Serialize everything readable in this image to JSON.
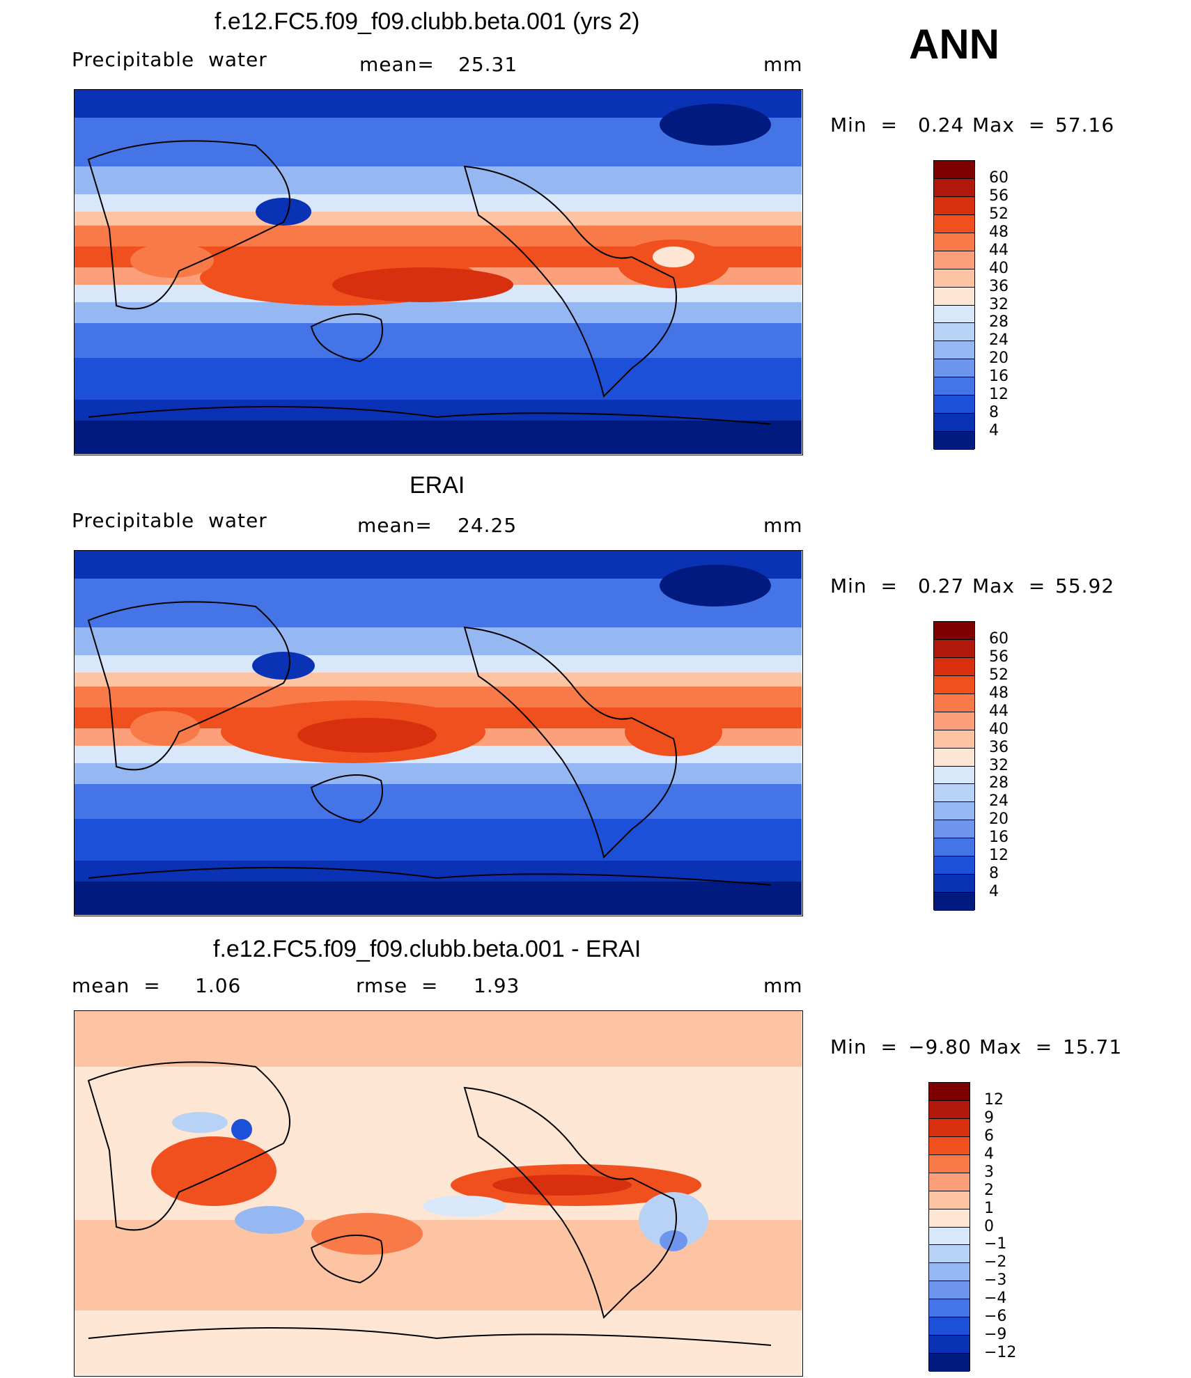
{
  "season": "ANN",
  "panels": [
    {
      "title": "f.e12.FC5.f09_f09.clubb.beta.001 (yrs 2)",
      "left_label": "Precipitable  water",
      "stat_label": "mean=",
      "stat_value": "25.31",
      "units": "mm",
      "min_label": "Min  =",
      "min_value": "0.24",
      "max_label": "Max  =",
      "max_value": "57.16",
      "colorbar": {
        "labels": [
          "60",
          "56",
          "52",
          "48",
          "44",
          "40",
          "36",
          "32",
          "28",
          "24",
          "20",
          "16",
          "12",
          "8",
          "4"
        ],
        "colors": [
          "#7f0000",
          "#b0180b",
          "#d8300f",
          "#f0501e",
          "#f87a48",
          "#fba07a",
          "#fdc4a4",
          "#fde6d4",
          "#d8e8fa",
          "#b8d2f6",
          "#96b8f2",
          "#6e96ec",
          "#4474e6",
          "#1c50d8",
          "#0a32b4",
          "#001a80"
        ]
      }
    },
    {
      "title": "ERAI",
      "left_label": "Precipitable  water",
      "stat_label": "mean=",
      "stat_value": "24.25",
      "units": "mm",
      "min_label": "Min  =",
      "min_value": "0.27",
      "max_label": "Max  =",
      "max_value": "55.92",
      "colorbar": {
        "labels": [
          "60",
          "56",
          "52",
          "48",
          "44",
          "40",
          "36",
          "32",
          "28",
          "24",
          "20",
          "16",
          "12",
          "8",
          "4"
        ],
        "colors": [
          "#7f0000",
          "#b0180b",
          "#d8300f",
          "#f0501e",
          "#f87a48",
          "#fba07a",
          "#fdc4a4",
          "#fde6d4",
          "#d8e8fa",
          "#b8d2f6",
          "#96b8f2",
          "#6e96ec",
          "#4474e6",
          "#1c50d8",
          "#0a32b4",
          "#001a80"
        ]
      }
    },
    {
      "title": "f.e12.FC5.f09_f09.clubb.beta.001 - ERAI",
      "left_label": "mean  =",
      "left_value": "1.06",
      "stat_label": "rmse  =",
      "stat_value": "1.93",
      "units": "mm",
      "min_label": "Min  =",
      "min_value": "−9.80",
      "max_label": "Max  =",
      "max_value": "15.71",
      "colorbar": {
        "labels": [
          "12",
          "9",
          "6",
          "4",
          "3",
          "2",
          "1",
          "0",
          "−1",
          "−2",
          "−3",
          "−4",
          "−6",
          "−9",
          "−12"
        ],
        "colors": [
          "#7f0000",
          "#b0180b",
          "#d8300f",
          "#f0501e",
          "#f87a48",
          "#fba07a",
          "#fdc4a4",
          "#fde6d4",
          "#d8e8fa",
          "#b8d2f6",
          "#96b8f2",
          "#6e96ec",
          "#4474e6",
          "#1c50d8",
          "#0a32b4",
          "#001a80"
        ]
      }
    }
  ]
}
